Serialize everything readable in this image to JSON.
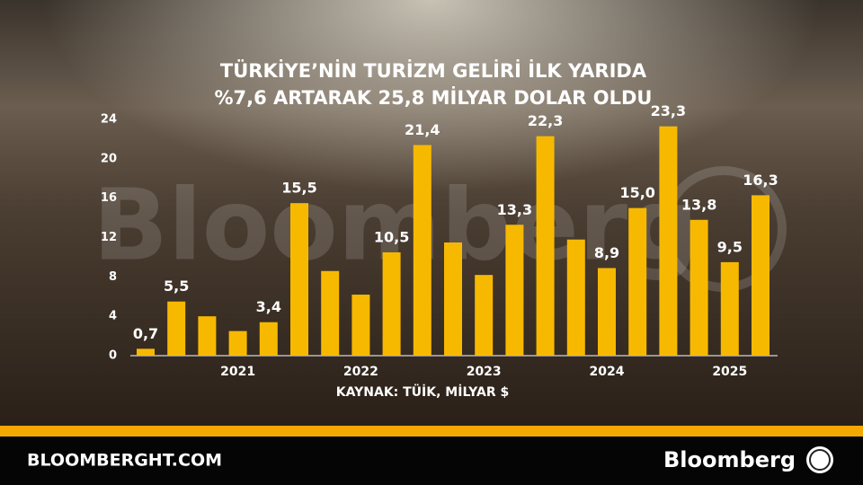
{
  "chart_data": {
    "type": "bar",
    "title": [
      "TÜRKİYE’NİN TURİZM GELİRİ İLK YARIDA",
      "%7,6 ARTARAK 25,8 MİLYAR DOLAR OLDU"
    ],
    "source": "KAYNAK: TÜİK, MİLYAR $",
    "watermark": "Bloomberg",
    "footer": {
      "site": "BLOOMBERGHT.COM",
      "brand": "Bloomberg"
    },
    "categories": [
      null,
      null,
      null,
      "2021",
      null,
      null,
      null,
      "2022",
      null,
      null,
      null,
      "2023",
      null,
      null,
      null,
      "2024",
      null,
      null,
      null,
      "2025",
      null
    ],
    "values": [
      0.7,
      5.5,
      4.0,
      2.5,
      3.4,
      15.5,
      8.6,
      6.2,
      10.5,
      21.4,
      11.5,
      8.2,
      13.3,
      22.3,
      11.8,
      8.9,
      15.0,
      23.3,
      13.8,
      9.5,
      16.3
    ],
    "value_labels": [
      "0,7",
      "5,5",
      null,
      null,
      "3,4",
      "15,5",
      null,
      null,
      "10,5",
      "21,4",
      null,
      null,
      "13,3",
      "22,3",
      null,
      "8,9",
      "15,0",
      "23,3",
      "13,8",
      "9,5",
      "16,3"
    ],
    "color": "#f7b900",
    "ylim": [
      0,
      24
    ],
    "yticks": [
      0,
      4,
      8,
      12,
      16,
      20,
      24
    ],
    "grid": false
  }
}
